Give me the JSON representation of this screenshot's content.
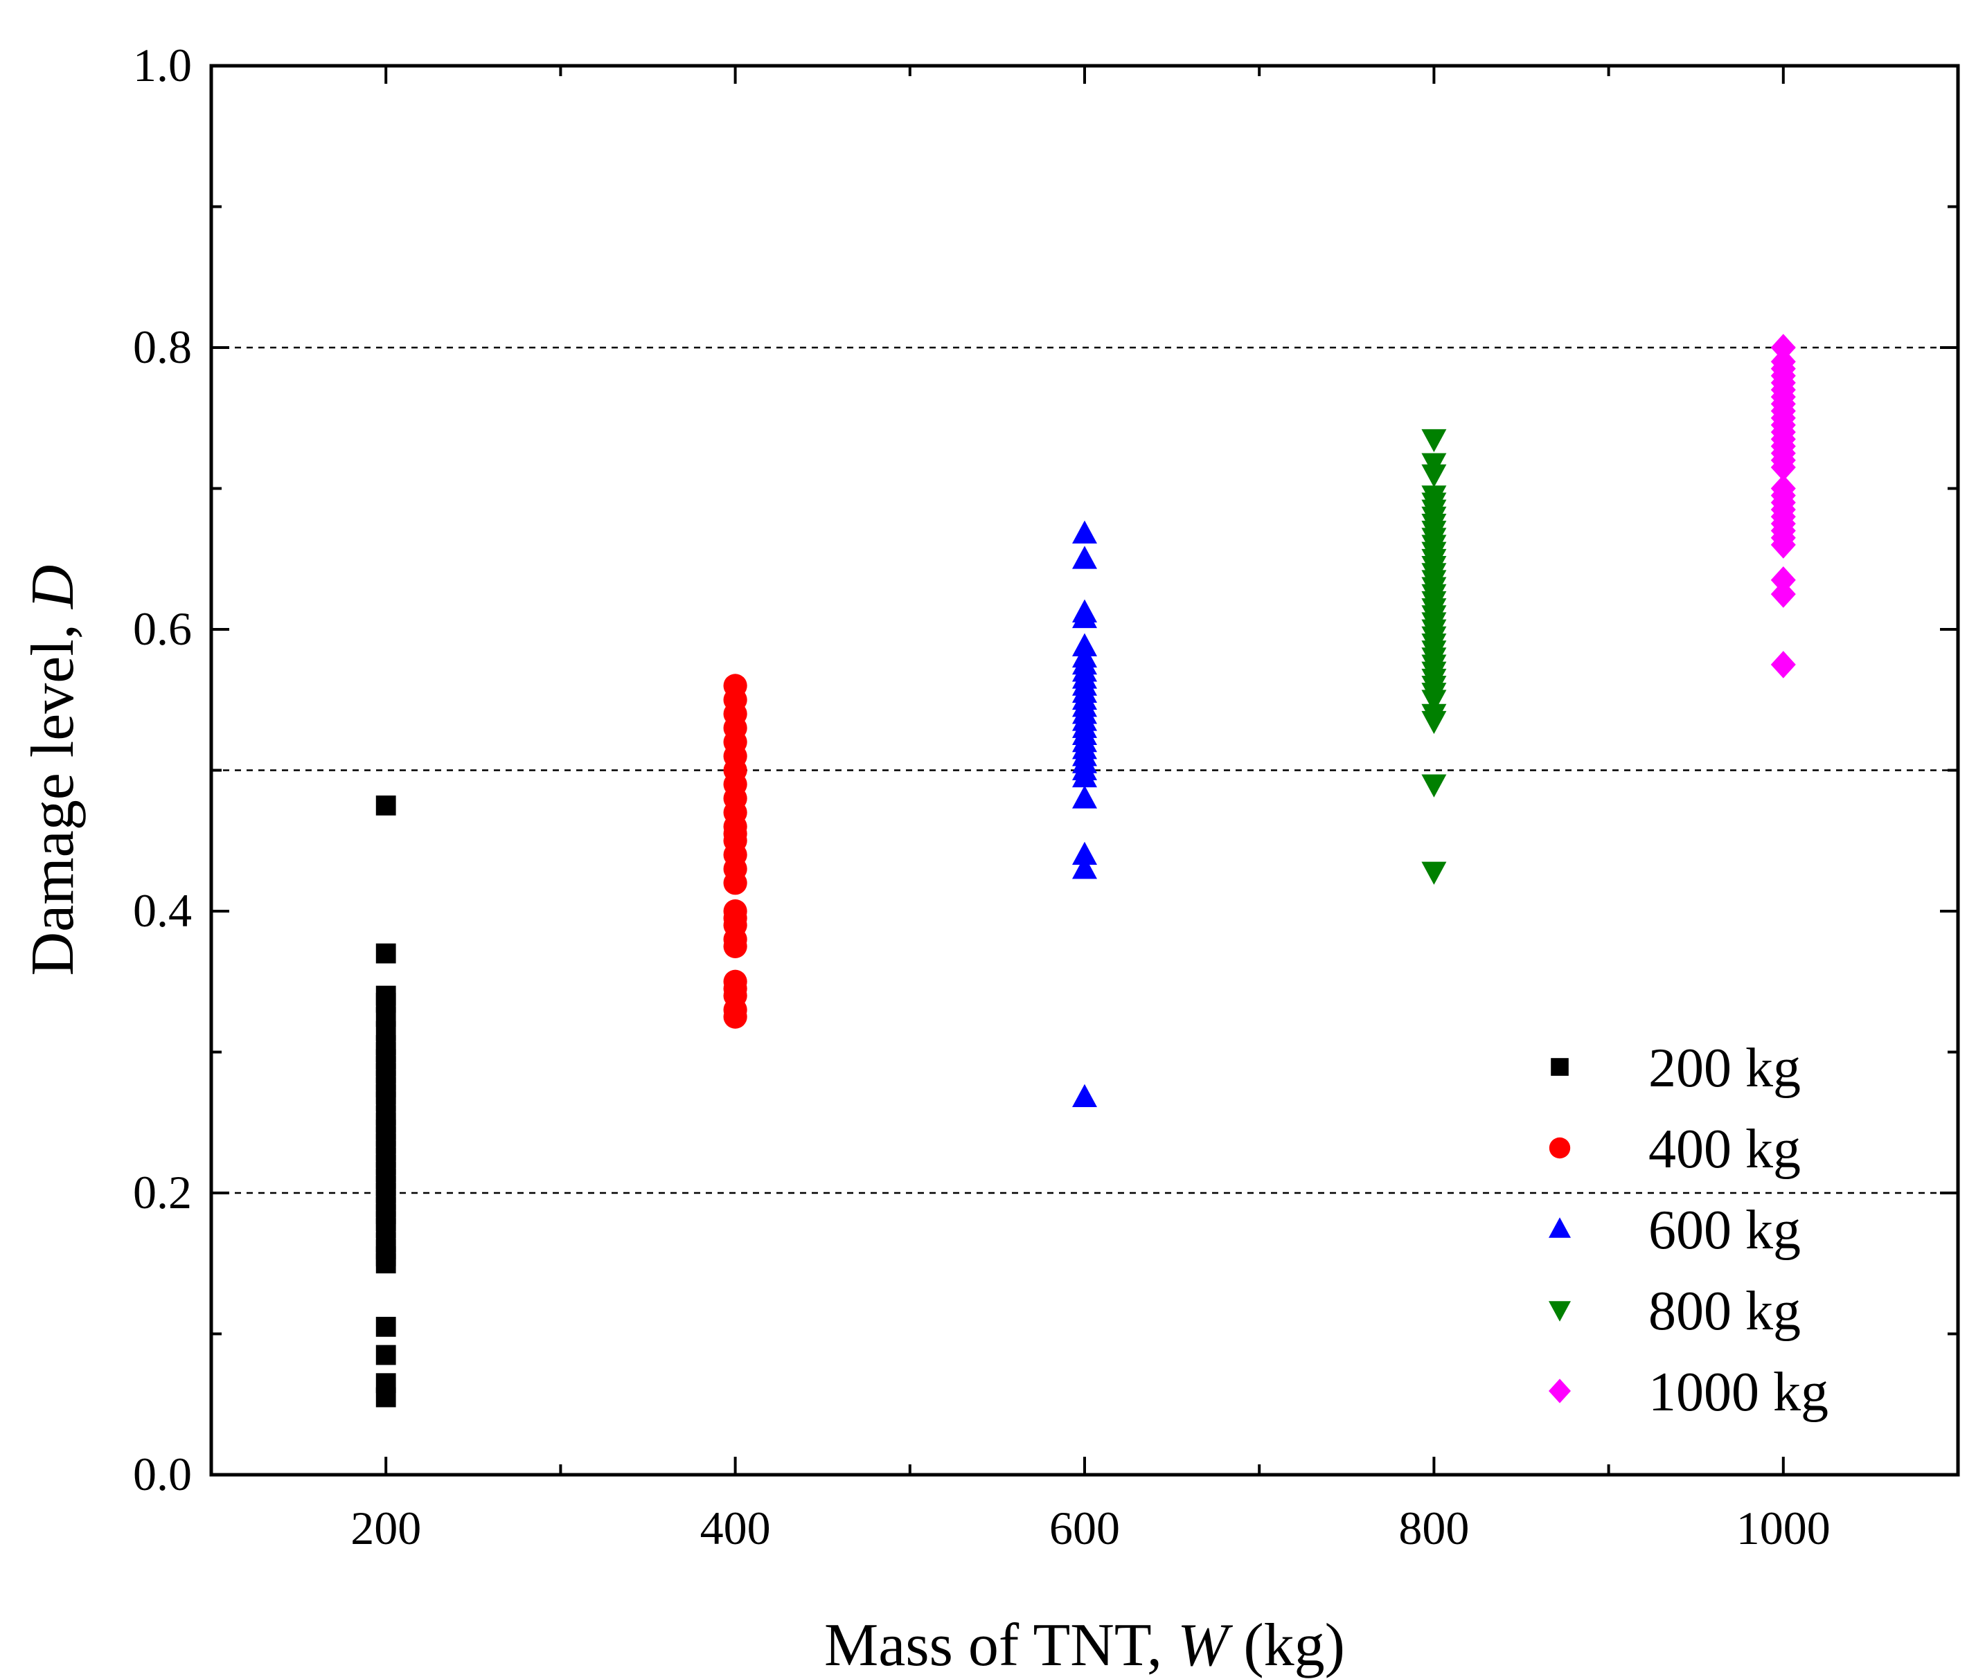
{
  "chart_data": {
    "type": "scatter",
    "title": "",
    "xlabel": {
      "prefix": "Mass of TNT, ",
      "var": "W",
      "suffix": " (kg)"
    },
    "ylabel": {
      "prefix": "Damage level, ",
      "var": "D",
      "suffix": ""
    },
    "xlim": [
      100,
      1100
    ],
    "ylim": [
      0.0,
      1.0
    ],
    "xticks": [
      200,
      400,
      600,
      800,
      1000
    ],
    "xtick_labels": [
      "200",
      "400",
      "600",
      "800",
      "1000"
    ],
    "yticks": [
      0.0,
      0.2,
      0.4,
      0.6,
      0.8,
      1.0
    ],
    "ytick_labels": [
      "0.0",
      "0.2",
      "0.4",
      "0.6",
      "0.8",
      "1.0"
    ],
    "reference_lines_y": [
      0.2,
      0.5,
      0.8
    ],
    "legend_position": "bottom-right",
    "series": [
      {
        "name": "200 kg",
        "marker": "square",
        "color": "#000000",
        "x": 200,
        "values": [
          0.475,
          0.37,
          0.34,
          0.335,
          0.325,
          0.315,
          0.305,
          0.3,
          0.295,
          0.29,
          0.285,
          0.28,
          0.275,
          0.27,
          0.265,
          0.255,
          0.25,
          0.245,
          0.24,
          0.235,
          0.23,
          0.225,
          0.22,
          0.215,
          0.21,
          0.205,
          0.2,
          0.195,
          0.19,
          0.185,
          0.18,
          0.175,
          0.165,
          0.16,
          0.155,
          0.15,
          0.105,
          0.085,
          0.065,
          0.055
        ]
      },
      {
        "name": "400 kg",
        "marker": "circle",
        "color": "#ff0000",
        "x": 400,
        "values": [
          0.56,
          0.55,
          0.54,
          0.53,
          0.52,
          0.51,
          0.5,
          0.49,
          0.48,
          0.47,
          0.46,
          0.455,
          0.45,
          0.44,
          0.43,
          0.42,
          0.4,
          0.395,
          0.39,
          0.38,
          0.375,
          0.35,
          0.345,
          0.34,
          0.33,
          0.325
        ]
      },
      {
        "name": "600 kg",
        "marker": "triangle-up",
        "color": "#0000ff",
        "x": 600,
        "values": [
          0.668,
          0.65,
          0.612,
          0.608,
          0.588,
          0.58,
          0.575,
          0.57,
          0.565,
          0.56,
          0.555,
          0.55,
          0.545,
          0.54,
          0.535,
          0.53,
          0.525,
          0.52,
          0.515,
          0.51,
          0.505,
          0.5,
          0.495,
          0.48,
          0.44,
          0.43,
          0.268
        ]
      },
      {
        "name": "800 kg",
        "marker": "triangle-down",
        "color": "#008000",
        "x": 800,
        "values": [
          0.735,
          0.718,
          0.71,
          0.695,
          0.69,
          0.685,
          0.68,
          0.675,
          0.67,
          0.665,
          0.66,
          0.655,
          0.65,
          0.645,
          0.64,
          0.635,
          0.63,
          0.625,
          0.62,
          0.615,
          0.61,
          0.605,
          0.6,
          0.595,
          0.59,
          0.585,
          0.58,
          0.575,
          0.57,
          0.565,
          0.56,
          0.555,
          0.55,
          0.54,
          0.535,
          0.49,
          0.428
        ]
      },
      {
        "name": "1000 kg",
        "marker": "diamond",
        "color": "#ff00ff",
        "x": 1000,
        "values": [
          0.8,
          0.79,
          0.785,
          0.78,
          0.775,
          0.77,
          0.765,
          0.76,
          0.755,
          0.75,
          0.745,
          0.74,
          0.735,
          0.73,
          0.725,
          0.72,
          0.715,
          0.7,
          0.695,
          0.69,
          0.685,
          0.68,
          0.675,
          0.67,
          0.665,
          0.66,
          0.635,
          0.625,
          0.575
        ]
      }
    ]
  }
}
